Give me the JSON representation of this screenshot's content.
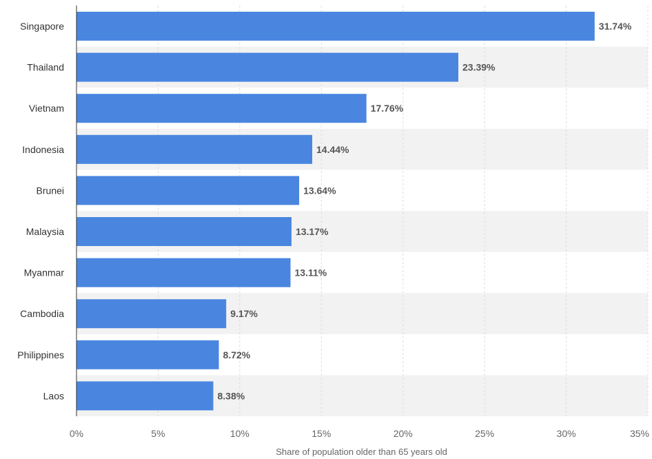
{
  "chart_data": {
    "type": "bar",
    "orientation": "horizontal",
    "categories": [
      "Singapore",
      "Thailand",
      "Vietnam",
      "Indonesia",
      "Brunei",
      "Malaysia",
      "Myanmar",
      "Cambodia",
      "Philippines",
      "Laos"
    ],
    "values": [
      31.74,
      23.39,
      17.76,
      14.44,
      13.64,
      13.17,
      13.11,
      9.17,
      8.72,
      8.38
    ],
    "value_labels": [
      "31.74%",
      "23.39%",
      "17.76%",
      "14.44%",
      "13.64%",
      "13.17%",
      "13.11%",
      "9.17%",
      "8.72%",
      "8.38%"
    ],
    "xlabel": "Share of population older than 65 years old",
    "ylabel": "",
    "xlim": [
      0,
      35
    ],
    "x_ticks": [
      0,
      5,
      10,
      15,
      20,
      25,
      30,
      35
    ],
    "x_tick_labels": [
      "0%",
      "5%",
      "10%",
      "15%",
      "20%",
      "25%",
      "30%",
      "35%"
    ],
    "grid": true,
    "bar_color": "#4a86e0",
    "band_color": "#f2f2f2"
  }
}
